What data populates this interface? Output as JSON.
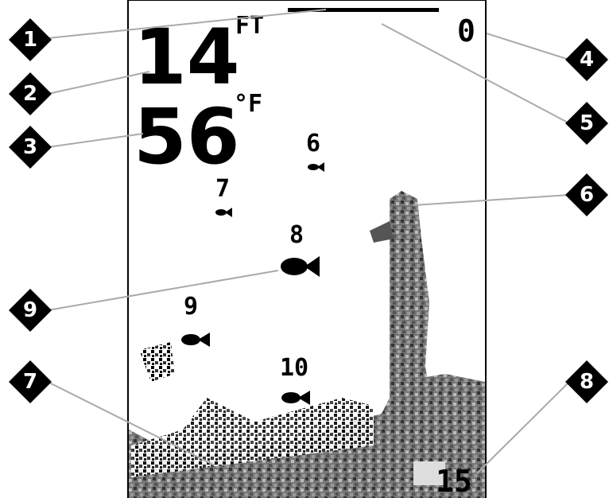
{
  "display": {
    "depth": "14",
    "depth_unit": "FT",
    "temperature": "56",
    "temp_unit": "°F",
    "top_scale": "0",
    "bottom_scale": "15",
    "fish_labels": [
      "6",
      "7",
      "8",
      "9",
      "10"
    ]
  },
  "callouts": [
    "1",
    "2",
    "3",
    "4",
    "5",
    "6",
    "7",
    "8",
    "9"
  ]
}
